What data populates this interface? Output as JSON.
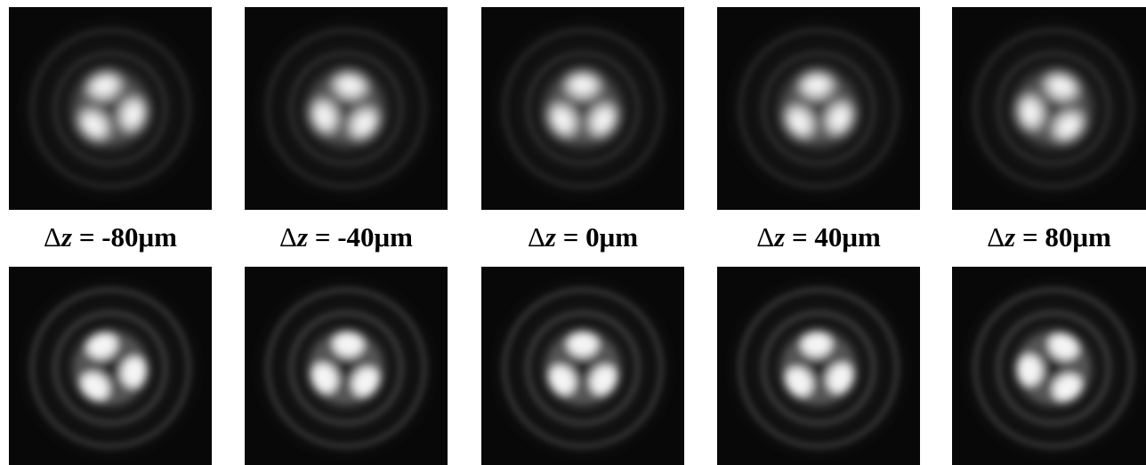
{
  "columns": [
    {
      "label": {
        "delta": "Δ",
        "variable": "z",
        "rest": " = -80μm"
      }
    },
    {
      "label": {
        "delta": "Δ",
        "variable": "z",
        "rest": " = -40μm"
      }
    },
    {
      "label": {
        "delta": "Δ",
        "variable": "z",
        "rest": " = 0μm"
      }
    },
    {
      "label": {
        "delta": "Δ",
        "variable": "z",
        "rest": " = 40μm"
      }
    },
    {
      "label": {
        "delta": "Δ",
        "variable": "z",
        "rest": " = 80μm"
      }
    }
  ]
}
